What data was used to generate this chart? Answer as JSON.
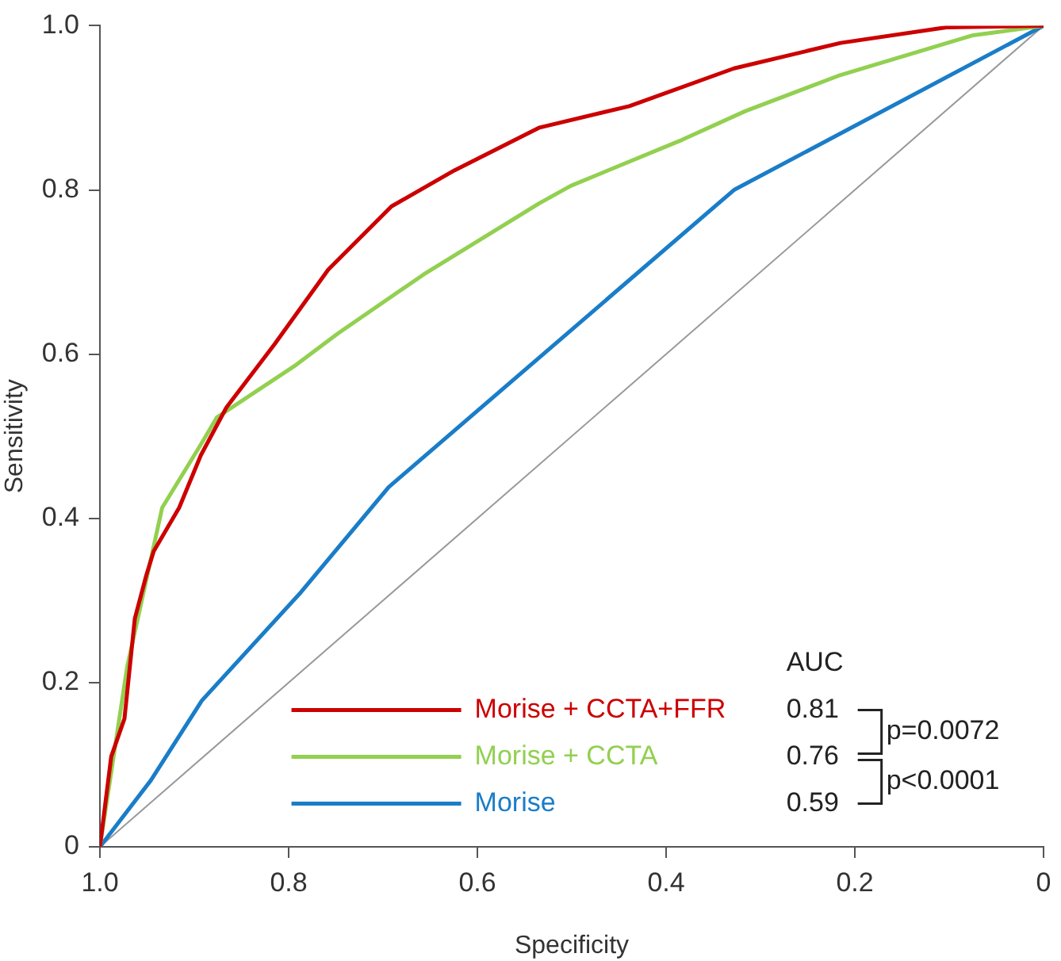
{
  "chart_data": {
    "type": "line",
    "xlabel": "Specificity",
    "ylabel": "Sensitivity",
    "xlim": [
      1,
      0
    ],
    "ylim": [
      0,
      1
    ],
    "xticks": [
      {
        "value": 1,
        "label": "1.0"
      },
      0.8,
      0.6,
      0.4,
      0.2,
      0
    ],
    "yticks": [
      0,
      0.2,
      0.4,
      0.6,
      0.8,
      {
        "value": 1,
        "label": "1.0"
      }
    ],
    "grid": false,
    "legend": "bottom right",
    "marker": "none",
    "line_style": "solid",
    "series": [
      {
        "name": "Morise + CCTA+FFR",
        "color": "#cc0000",
        "x": [
          1,
          0.988,
          0.974,
          0.963,
          0.951,
          0.943,
          0.916,
          0.893,
          0.866,
          0.815,
          0.758,
          0.691,
          0.624,
          0.534,
          0.439,
          0.328,
          0.215,
          0.103,
          0
        ],
        "values": [
          0,
          0.11,
          0.156,
          0.278,
          0.33,
          0.36,
          0.413,
          0.477,
          0.535,
          0.612,
          0.703,
          0.78,
          0.824,
          0.876,
          0.902,
          0.948,
          0.979,
          0.998,
          1
        ]
      },
      {
        "name": "Morise + CCTA",
        "color": "#92d050",
        "x": [
          1,
          0.971,
          0.934,
          0.893,
          0.876,
          0.792,
          0.748,
          0.657,
          0.534,
          0.501,
          0.383,
          0.316,
          0.215,
          0.076,
          0
        ],
        "values": [
          0,
          0.22,
          0.413,
          0.49,
          0.523,
          0.587,
          0.625,
          0.697,
          0.784,
          0.805,
          0.861,
          0.896,
          0.94,
          0.988,
          1
        ]
      },
      {
        "name": "Morise",
        "color": "#1a7dc8",
        "x": [
          1,
          0.946,
          0.892,
          0.787,
          0.694,
          0.328,
          0
        ],
        "values": [
          0,
          0.081,
          0.178,
          0.31,
          0.438,
          0.8,
          1
        ]
      },
      {
        "color": "#999999",
        "x": [
          1,
          0
        ],
        "values": [
          0,
          1
        ]
      }
    ],
    "annotations": [
      "AUC",
      "0.81",
      "0.76",
      "0.59",
      "p=0.0072",
      "p<0.0001"
    ]
  }
}
